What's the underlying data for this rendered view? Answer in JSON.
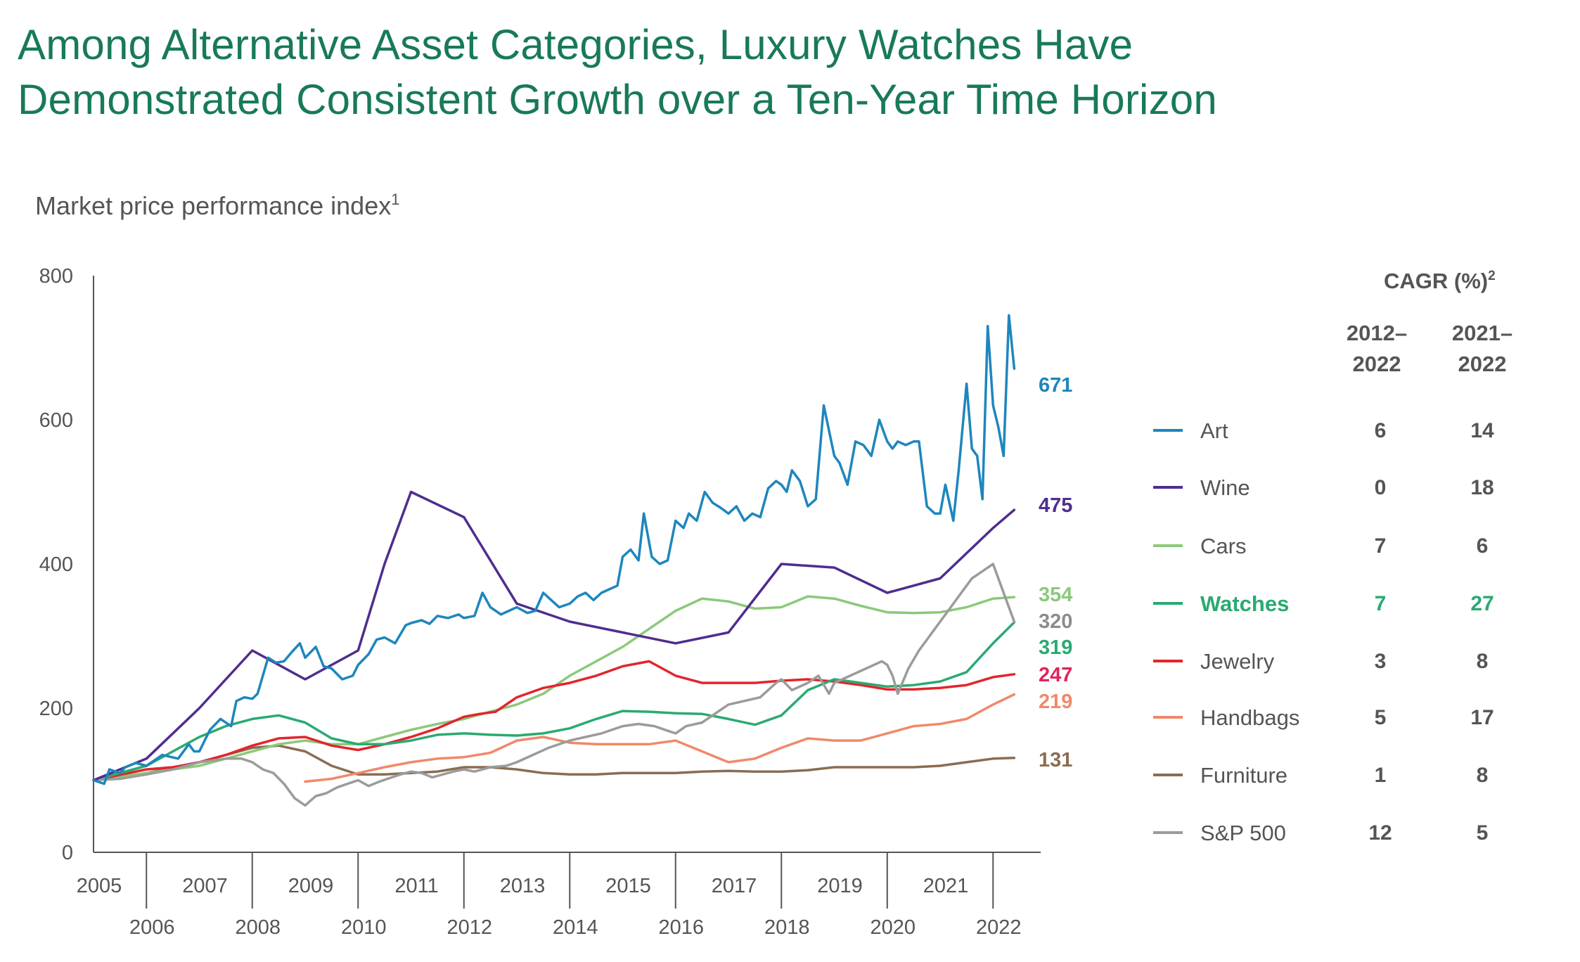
{
  "title_line1": "Among Alternative Asset Categories, Luxury Watches Have",
  "title_line2": "Demonstrated Consistent Growth over a Ten-Year Time Horizon",
  "chart_data": {
    "type": "line",
    "title": "Among Alternative Asset Categories, Luxury Watches Have Demonstrated Consistent Growth over a Ten-Year Time Horizon",
    "subtitle_main": "Market price performance index",
    "subtitle_sup": "1",
    "xlabel": "",
    "ylabel": "",
    "xlim": [
      2005,
      2022.9
    ],
    "ylim": [
      0,
      800
    ],
    "y_ticks": [
      0,
      200,
      400,
      600,
      800
    ],
    "x_ticks": [
      "2005",
      "2006",
      "2007",
      "2008",
      "2009",
      "2010",
      "2011",
      "2012",
      "2013",
      "2014",
      "2015",
      "2016",
      "2017",
      "2018",
      "2019",
      "2020",
      "2021",
      "2022"
    ],
    "x_tick_values": [
      2005,
      2006,
      2007,
      2008,
      2009,
      2010,
      2011,
      2012,
      2013,
      2014,
      2015,
      2016,
      2017,
      2018,
      2019,
      2020,
      2021,
      2022
    ],
    "grid": false,
    "legend_position": "right",
    "cagr_header_main": "CAGR (%)",
    "cagr_header_sup": "2",
    "col1_line1": "2012–",
    "col1_line2": "2022",
    "col2_line1": "2021–",
    "col2_line2": "2022",
    "series": [
      {
        "name": "Art",
        "color": "#1e86bd",
        "end_label": "671",
        "cagr_2012_2022": "6",
        "cagr_2021_2022": "14",
        "highlight": false,
        "x": [
          2005.0,
          2005.2,
          2005.3,
          2005.5,
          2005.6,
          2005.8,
          2006.0,
          2006.3,
          2006.6,
          2006.8,
          2006.9,
          2007.0,
          2007.2,
          2007.4,
          2007.6,
          2007.7,
          2007.85,
          2008.0,
          2008.1,
          2008.3,
          2008.45,
          2008.6,
          2008.75,
          2008.9,
          2009.0,
          2009.2,
          2009.35,
          2009.5,
          2009.7,
          2009.9,
          2010.0,
          2010.2,
          2010.35,
          2010.5,
          2010.7,
          2010.9,
          2011.0,
          2011.2,
          2011.35,
          2011.5,
          2011.7,
          2011.9,
          2012.0,
          2012.2,
          2012.35,
          2012.5,
          2012.7,
          2012.85,
          2013.0,
          2013.2,
          2013.35,
          2013.5,
          2013.65,
          2013.8,
          2014.0,
          2014.15,
          2014.3,
          2014.45,
          2014.6,
          2014.75,
          2014.9,
          2015.0,
          2015.15,
          2015.3,
          2015.4,
          2015.55,
          2015.7,
          2015.85,
          2016.0,
          2016.15,
          2016.25,
          2016.4,
          2016.55,
          2016.7,
          2016.85,
          2017.0,
          2017.15,
          2017.3,
          2017.45,
          2017.6,
          2017.75,
          2017.9,
          2018.0,
          2018.1,
          2018.2,
          2018.35,
          2018.5,
          2018.65,
          2018.8,
          2019.0,
          2019.1,
          2019.25,
          2019.4,
          2019.55,
          2019.7,
          2019.85,
          2020.0,
          2020.1,
          2020.2,
          2020.35,
          2020.5,
          2020.6,
          2020.75,
          2020.9,
          2021.0,
          2021.1,
          2021.25,
          2021.35,
          2021.5,
          2021.6,
          2021.7,
          2021.8,
          2021.9,
          2022.0,
          2022.1,
          2022.2,
          2022.3,
          2022.4
        ],
        "y": [
          100,
          95,
          115,
          110,
          118,
          124,
          120,
          135,
          130,
          150,
          140,
          140,
          170,
          185,
          175,
          210,
          215,
          213,
          220,
          270,
          263,
          265,
          278,
          290,
          270,
          285,
          258,
          255,
          240,
          245,
          260,
          275,
          295,
          298,
          290,
          315,
          318,
          322,
          317,
          328,
          325,
          330,
          325,
          328,
          360,
          340,
          330,
          335,
          340,
          332,
          335,
          360,
          350,
          340,
          345,
          355,
          360,
          350,
          360,
          365,
          370,
          410,
          420,
          405,
          470,
          410,
          400,
          405,
          460,
          450,
          470,
          460,
          500,
          485,
          478,
          470,
          480,
          460,
          470,
          465,
          505,
          515,
          510,
          500,
          530,
          515,
          480,
          490,
          620,
          550,
          540,
          510,
          570,
          565,
          550,
          600,
          570,
          560,
          570,
          565,
          570,
          570,
          480,
          470,
          470,
          510,
          460,
          530,
          650,
          560,
          550,
          490,
          730,
          620,
          590,
          550,
          745,
          671
        ]
      },
      {
        "name": "Wine",
        "color": "#4f2d8f",
        "end_label": "475",
        "cagr_2012_2022": "0",
        "cagr_2021_2022": "18",
        "highlight": false,
        "x": [
          2005.0,
          2006.0,
          2007.0,
          2008.0,
          2009.0,
          2010.0,
          2010.5,
          2011.0,
          2012.0,
          2013.0,
          2014.0,
          2015.0,
          2016.0,
          2017.0,
          2018.0,
          2019.0,
          2020.0,
          2021.0,
          2022.0,
          2022.4
        ],
        "y": [
          100,
          130,
          200,
          280,
          240,
          280,
          400,
          500,
          465,
          345,
          320,
          305,
          290,
          305,
          400,
          395,
          360,
          380,
          450,
          475
        ]
      },
      {
        "name": "Cars",
        "color": "#8bc97a",
        "end_label": "354",
        "cagr_2012_2022": "7",
        "cagr_2021_2022": "6",
        "highlight": false,
        "x": [
          2005.0,
          2006.0,
          2007.0,
          2007.5,
          2008.0,
          2008.5,
          2009.0,
          2009.5,
          2010.0,
          2010.5,
          2011.0,
          2011.5,
          2012.0,
          2012.5,
          2013.0,
          2013.5,
          2014.0,
          2014.5,
          2015.0,
          2015.5,
          2016.0,
          2016.5,
          2017.0,
          2017.5,
          2018.0,
          2018.5,
          2019.0,
          2019.5,
          2020.0,
          2020.5,
          2021.0,
          2021.5,
          2022.0,
          2022.4
        ],
        "y": [
          100,
          110,
          120,
          130,
          140,
          150,
          155,
          150,
          150,
          160,
          170,
          178,
          185,
          195,
          205,
          220,
          245,
          265,
          285,
          310,
          335,
          352,
          348,
          338,
          340,
          355,
          352,
          342,
          333,
          332,
          333,
          340,
          352,
          354
        ]
      },
      {
        "name": "Watches",
        "color": "#2aaa72",
        "end_label": "319",
        "cagr_2012_2022": "7",
        "cagr_2021_2022": "27",
        "highlight": true,
        "x": [
          2005.0,
          2006.0,
          2006.5,
          2007.0,
          2007.5,
          2008.0,
          2008.5,
          2009.0,
          2009.5,
          2010.0,
          2010.5,
          2011.0,
          2011.5,
          2012.0,
          2012.5,
          2013.0,
          2013.5,
          2014.0,
          2014.5,
          2015.0,
          2015.5,
          2016.0,
          2016.5,
          2017.0,
          2017.5,
          2018.0,
          2018.5,
          2019.0,
          2019.5,
          2020.0,
          2020.5,
          2021.0,
          2021.5,
          2022.0,
          2022.4
        ],
        "y": [
          100,
          120,
          140,
          160,
          175,
          185,
          190,
          180,
          158,
          150,
          150,
          155,
          163,
          165,
          163,
          162,
          165,
          172,
          185,
          196,
          195,
          193,
          192,
          185,
          177,
          190,
          225,
          240,
          235,
          230,
          232,
          237,
          250,
          290,
          319
        ]
      },
      {
        "name": "Jewelry",
        "color": "#e2252b",
        "end_label": "247",
        "cagr_2012_2022": "3",
        "cagr_2021_2022": "8",
        "highlight": false,
        "x": [
          2005.0,
          2006.0,
          2006.5,
          2007.0,
          2007.5,
          2008.0,
          2008.5,
          2009.0,
          2009.5,
          2010.0,
          2010.5,
          2011.0,
          2011.5,
          2012.0,
          2012.3,
          2012.6,
          2013.0,
          2013.5,
          2014.0,
          2014.5,
          2015.0,
          2015.5,
          2016.0,
          2016.5,
          2017.0,
          2017.5,
          2018.0,
          2018.5,
          2019.0,
          2019.5,
          2020.0,
          2020.5,
          2021.0,
          2021.5,
          2022.0,
          2022.4
        ],
        "y": [
          100,
          115,
          118,
          125,
          135,
          148,
          158,
          160,
          148,
          142,
          150,
          160,
          172,
          188,
          192,
          195,
          215,
          228,
          235,
          245,
          258,
          265,
          245,
          235,
          235,
          235,
          238,
          240,
          237,
          232,
          226,
          226,
          228,
          232,
          243,
          247
        ]
      },
      {
        "name": "Handbags",
        "color": "#f0896b",
        "end_label": "219",
        "cagr_2012_2022": "5",
        "cagr_2021_2022": "17",
        "highlight": false,
        "x": [
          2009.0,
          2009.5,
          2010.0,
          2010.5,
          2011.0,
          2011.5,
          2012.0,
          2012.5,
          2013.0,
          2013.5,
          2014.0,
          2014.5,
          2015.0,
          2015.5,
          2016.0,
          2016.5,
          2017.0,
          2017.5,
          2018.0,
          2018.5,
          2019.0,
          2019.5,
          2020.0,
          2020.5,
          2021.0,
          2021.5,
          2022.0,
          2022.4
        ],
        "y": [
          98,
          102,
          110,
          118,
          125,
          130,
          132,
          138,
          155,
          160,
          152,
          150,
          150,
          150,
          155,
          140,
          125,
          130,
          145,
          158,
          155,
          155,
          165,
          175,
          178,
          185,
          205,
          219
        ]
      },
      {
        "name": "Furniture",
        "color": "#8a6d52",
        "end_label": "131",
        "cagr_2012_2022": "1",
        "cagr_2021_2022": "8",
        "highlight": false,
        "x": [
          2005.0,
          2006.0,
          2007.0,
          2007.5,
          2008.0,
          2008.5,
          2009.0,
          2009.5,
          2010.0,
          2010.5,
          2011.0,
          2011.5,
          2012.0,
          2012.5,
          2013.0,
          2013.5,
          2014.0,
          2014.5,
          2015.0,
          2015.5,
          2016.0,
          2016.5,
          2017.0,
          2017.5,
          2018.0,
          2018.5,
          2019.0,
          2019.5,
          2020.0,
          2020.5,
          2021.0,
          2021.5,
          2022.0,
          2022.4
        ],
        "y": [
          100,
          110,
          125,
          135,
          145,
          148,
          140,
          120,
          108,
          108,
          110,
          112,
          118,
          118,
          115,
          110,
          108,
          108,
          110,
          110,
          110,
          112,
          113,
          112,
          112,
          114,
          118,
          118,
          118,
          118,
          120,
          125,
          130,
          131
        ]
      },
      {
        "name": "S&P 500",
        "color": "#9b9b9b",
        "end_label": "320",
        "cagr_2012_2022": "12",
        "cagr_2021_2022": "5",
        "highlight": false,
        "x": [
          2005.0,
          2005.5,
          2006.0,
          2006.5,
          2007.0,
          2007.5,
          2007.8,
          2008.0,
          2008.2,
          2008.4,
          2008.6,
          2008.8,
          2009.0,
          2009.2,
          2009.4,
          2009.6,
          2009.8,
          2010.0,
          2010.2,
          2010.4,
          2010.6,
          2010.8,
          2011.0,
          2011.2,
          2011.4,
          2011.6,
          2011.8,
          2012.0,
          2012.2,
          2012.5,
          2012.8,
          2013.0,
          2013.3,
          2013.6,
          2014.0,
          2014.3,
          2014.6,
          2015.0,
          2015.3,
          2015.6,
          2015.8,
          2016.0,
          2016.2,
          2016.5,
          2016.8,
          2017.0,
          2017.3,
          2017.6,
          2017.9,
          2018.0,
          2018.2,
          2018.5,
          2018.7,
          2018.9,
          2019.0,
          2019.3,
          2019.6,
          2019.9,
          2020.0,
          2020.1,
          2020.2,
          2020.4,
          2020.6,
          2020.8,
          2021.0,
          2021.2,
          2021.4,
          2021.6,
          2021.8,
          2022.0,
          2022.2,
          2022.4
        ],
        "y": [
          100,
          102,
          108,
          115,
          125,
          130,
          130,
          125,
          115,
          110,
          95,
          75,
          65,
          78,
          82,
          90,
          95,
          100,
          92,
          98,
          103,
          108,
          112,
          110,
          104,
          108,
          112,
          115,
          112,
          118,
          120,
          125,
          135,
          145,
          155,
          160,
          165,
          175,
          178,
          175,
          170,
          165,
          175,
          180,
          195,
          205,
          210,
          215,
          235,
          240,
          225,
          235,
          245,
          220,
          235,
          245,
          255,
          265,
          260,
          245,
          220,
          255,
          280,
          300,
          320,
          340,
          360,
          380,
          390,
          400,
          360,
          320
        ]
      }
    ]
  }
}
